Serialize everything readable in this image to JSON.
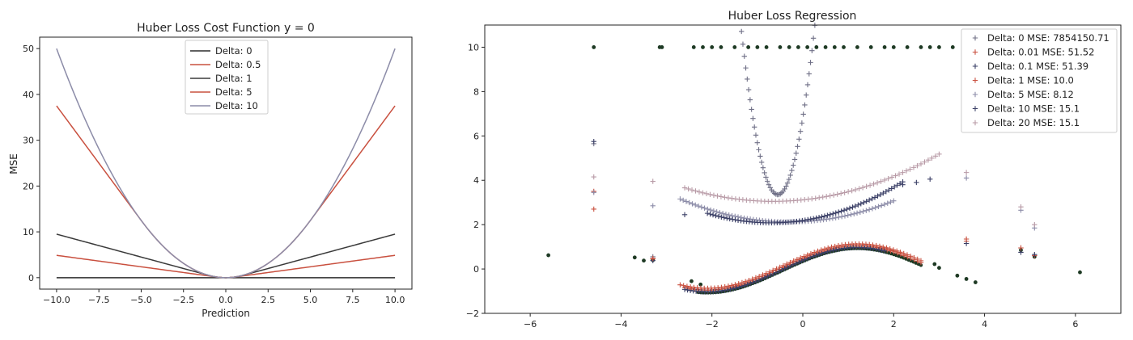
{
  "chart_data": [
    {
      "type": "line",
      "title": "Huber Loss Cost Function y = 0",
      "xlabel": "Prediction",
      "ylabel": "MSE",
      "xlim": [
        -11,
        11
      ],
      "ylim": [
        -2.5,
        52.5
      ],
      "xticks": [
        -10.0,
        -7.5,
        -5.0,
        -2.5,
        0.0,
        2.5,
        5.0,
        7.5,
        10.0
      ],
      "xtick_labels": [
        "−10.0",
        "−7.5",
        "−5.0",
        "−2.5",
        "0.0",
        "2.5",
        "5.0",
        "7.5",
        "10.0"
      ],
      "yticks": [
        0,
        10,
        20,
        30,
        40,
        50
      ],
      "ytick_labels": [
        "0",
        "10",
        "20",
        "30",
        "40",
        "50"
      ],
      "grid": false,
      "legend_position": "top-center",
      "x_range": [
        -10,
        10
      ],
      "series": [
        {
          "name": "Delta: 0",
          "delta": 0,
          "color": "#2b2b2b"
        },
        {
          "name": "Delta: 0.5",
          "delta": 0.5,
          "color": "#c9503f"
        },
        {
          "name": "Delta: 1",
          "delta": 1,
          "color": "#3a3a3a"
        },
        {
          "name": "Delta: 5",
          "delta": 5,
          "color": "#c9503f"
        },
        {
          "name": "Delta: 10",
          "delta": 10,
          "color": "#8c8ca8"
        }
      ]
    },
    {
      "type": "scatter",
      "title": "Huber Loss Regression",
      "xlabel": "",
      "ylabel": "",
      "xlim": [
        -7,
        7
      ],
      "ylim": [
        -2,
        11
      ],
      "xticks": [
        -6,
        -4,
        -2,
        0,
        2,
        4,
        6
      ],
      "xtick_labels": [
        "−6",
        "−4",
        "−2",
        "0",
        "2",
        "4",
        "6"
      ],
      "yticks": [
        -2,
        0,
        2,
        4,
        6,
        8,
        10
      ],
      "ytick_labels": [
        "−2",
        "0",
        "2",
        "4",
        "6",
        "8",
        "10"
      ],
      "grid": false,
      "legend_position": "top-right",
      "data_color": "#1e3a24",
      "data_points": [
        [
          -5.6,
          0.62
        ],
        [
          -4.6,
          10.0
        ],
        [
          -3.7,
          0.52
        ],
        [
          -3.5,
          0.38
        ],
        [
          -3.3,
          0.4
        ],
        [
          -3.15,
          10.0
        ],
        [
          -3.1,
          10.0
        ],
        [
          -2.4,
          10.0
        ],
        [
          -2.2,
          10.0
        ],
        [
          -2.0,
          10.0
        ],
        [
          -1.8,
          10.0
        ],
        [
          -1.5,
          10.0
        ],
        [
          -1.2,
          10.0
        ],
        [
          -1.0,
          10.0
        ],
        [
          -0.8,
          10.0
        ],
        [
          -0.5,
          10.0
        ],
        [
          -0.3,
          10.0
        ],
        [
          -0.1,
          10.0
        ],
        [
          0.1,
          10.0
        ],
        [
          0.3,
          10.0
        ],
        [
          0.5,
          10.0
        ],
        [
          0.7,
          10.0
        ],
        [
          0.9,
          10.0
        ],
        [
          1.2,
          10.0
        ],
        [
          1.5,
          10.0
        ],
        [
          1.8,
          10.0
        ],
        [
          2.0,
          10.0
        ],
        [
          2.3,
          10.0
        ],
        [
          2.6,
          10.0
        ],
        [
          2.8,
          10.0
        ],
        [
          3.0,
          10.0
        ],
        [
          3.3,
          10.0
        ],
        [
          3.6,
          10.0
        ],
        [
          3.9,
          10.0
        ],
        [
          4.1,
          10.0
        ],
        [
          4.4,
          10.0
        ],
        [
          4.7,
          10.0
        ],
        [
          5.0,
          10.0
        ],
        [
          2.9,
          0.22
        ],
        [
          3.0,
          0.05
        ],
        [
          3.4,
          -0.3
        ],
        [
          3.6,
          -0.45
        ],
        [
          3.8,
          -0.6
        ],
        [
          4.8,
          0.85
        ],
        [
          5.1,
          0.55
        ],
        [
          6.1,
          -0.15
        ],
        [
          -2.45,
          -0.55
        ],
        [
          -2.25,
          -0.7
        ]
      ],
      "data_curve": {
        "x": [
          -2.3,
          2.6
        ],
        "amplitude": 1.0
      },
      "series": [
        {
          "name": "Delta: 0 MSE: 7854150.71",
          "color": "#6f6f86",
          "curve": {
            "kind": "parabola",
            "x": [
              -1.35,
              0.55
            ],
            "vertex_x": -0.55,
            "vertex_y": 3.35,
            "a": 11.5
          },
          "outliers": [
            [
              -4.6,
              5.65
            ],
            [
              -3.3,
              0.55
            ]
          ]
        },
        {
          "name": "Delta: 0.01 MSE: 51.52",
          "color": "#c9503f",
          "curve": {
            "kind": "shifted",
            "x": [
              -2.6,
              2.6
            ],
            "offset": 0.1
          },
          "outliers": [
            [
              -4.6,
              2.7
            ],
            [
              -3.3,
              0.45
            ],
            [
              3.6,
              1.25
            ],
            [
              4.8,
              0.95
            ],
            [
              5.1,
              0.6
            ]
          ]
        },
        {
          "name": "Delta: 0.1 MSE: 51.39",
          "color": "#3a3f66",
          "curve": {
            "kind": "shifted",
            "x": [
              -2.6,
              1.8
            ],
            "offset": 0.02
          },
          "outliers": [
            [
              -4.6,
              5.75
            ],
            [
              -3.3,
              0.38
            ],
            [
              3.6,
              1.15
            ],
            [
              4.8,
              0.75
            ],
            [
              5.1,
              0.65
            ]
          ]
        },
        {
          "name": "Delta: 1 MSE: 10.0",
          "color": "#c9503f",
          "curve": {
            "kind": "shifted",
            "x": [
              -2.7,
              2.6
            ],
            "offset": 0.18
          },
          "outliers": [
            [
              -4.6,
              3.5
            ],
            [
              -3.3,
              0.48
            ],
            [
              3.6,
              1.35
            ],
            [
              4.8,
              0.95
            ]
          ]
        },
        {
          "name": "Delta: 5 MSE: 8.12",
          "color": "#8c8ca8",
          "curve": {
            "kind": "quadratic",
            "x": [
              -2.7,
              2.0
            ],
            "vertex_x": -0.3,
            "vertex_y": 2.12,
            "a": 0.18
          },
          "outliers": [
            [
              -4.6,
              3.45
            ],
            [
              -3.3,
              2.85
            ],
            [
              3.6,
              4.1
            ],
            [
              4.8,
              2.65
            ],
            [
              5.1,
              1.85
            ]
          ]
        },
        {
          "name": "Delta: 10 MSE: 15.1",
          "color": "#3a3f66",
          "curve": {
            "kind": "quadratic",
            "x": [
              -2.1,
              2.2
            ],
            "vertex_x": -0.7,
            "vertex_y": 2.08,
            "a": 0.22
          },
          "outliers": [
            [
              -2.6,
              2.45
            ],
            [
              2.2,
              3.8
            ],
            [
              2.5,
              3.9
            ],
            [
              2.8,
              4.05
            ]
          ]
        },
        {
          "name": "Delta: 20 MSE: 15.1",
          "color": "#b89aa6",
          "curve": {
            "kind": "quadratic",
            "x": [
              -2.6,
              3.0
            ],
            "vertex_x": -0.65,
            "vertex_y": 3.05,
            "a": 0.16
          },
          "outliers": [
            [
              -4.6,
              4.15
            ],
            [
              -3.3,
              3.95
            ],
            [
              3.6,
              4.35
            ],
            [
              4.8,
              2.8
            ],
            [
              5.1,
              2.0
            ]
          ]
        }
      ]
    }
  ]
}
